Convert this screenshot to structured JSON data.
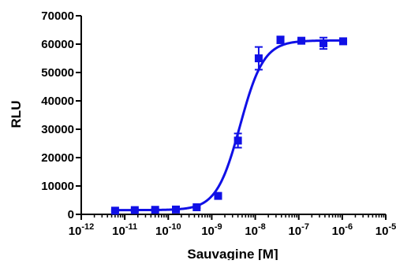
{
  "chart_data": {
    "type": "scatter",
    "title": "",
    "xlabel": "Sauvagine [M]",
    "ylabel": "RLU",
    "x_scale": "log",
    "xlim": [
      1e-12,
      1e-05
    ],
    "ylim": [
      0,
      70000
    ],
    "x_tick_labels": [
      {
        "base": "10",
        "exp": "-12"
      },
      {
        "base": "10",
        "exp": "-11"
      },
      {
        "base": "10",
        "exp": "-10"
      },
      {
        "base": "10",
        "exp": "-9"
      },
      {
        "base": "10",
        "exp": "-8"
      },
      {
        "base": "10",
        "exp": "-7"
      },
      {
        "base": "10",
        "exp": "-6"
      },
      {
        "base": "10",
        "exp": "-5"
      }
    ],
    "y_tick_labels": [
      "0",
      "10000",
      "20000",
      "30000",
      "40000",
      "50000",
      "60000",
      "70000"
    ],
    "grid": false,
    "color": "#1010e6",
    "series": [
      {
        "x": [
          6e-12,
          1.7e-11,
          5e-11,
          1.5e-10,
          4.5e-10,
          1.4e-09,
          4e-09,
          1.2e-08,
          3.8e-08,
          1.15e-07,
          3.7e-07,
          1.05e-06
        ],
        "y": [
          1300,
          1500,
          1600,
          1700,
          2500,
          6500,
          26000,
          55000,
          61500,
          61200,
          60300,
          61000
        ],
        "err": [
          300,
          300,
          300,
          300,
          300,
          300,
          2500,
          4000,
          1200,
          500,
          2000,
          300
        ]
      }
    ],
    "fit": {
      "model": "sigmoidal dose-response",
      "bottom": 1500,
      "top": 61300,
      "ec50": 4.5e-09,
      "hill": 1.6
    }
  }
}
